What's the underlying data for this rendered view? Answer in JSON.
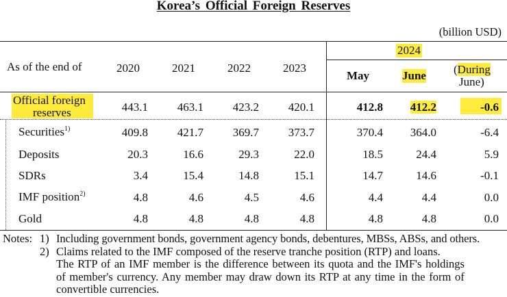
{
  "title": "Korea’s Official Foreign Reserves",
  "unit": "(billion USD)",
  "header": {
    "row_label": "As of the end of",
    "years": [
      "2020",
      "2021",
      "2022",
      "2023"
    ],
    "group_year": "2024",
    "may": "May",
    "june": "June",
    "change_open": "(",
    "change_hl": "During",
    "change_line2": "June)"
  },
  "rows": {
    "total": {
      "label_line1": "Official foreign",
      "label_line2": "reserves",
      "values": [
        "443.1",
        "463.1",
        "423.2",
        "420.1",
        "412.8",
        "412.2",
        "-0.6"
      ]
    },
    "securities": {
      "label": "Securities",
      "sup": "1)",
      "values": [
        "409.8",
        "421.7",
        "369.7",
        "373.7",
        "370.4",
        "364.0",
        "-6.4"
      ]
    },
    "deposits": {
      "label": "Deposits",
      "values": [
        "20.3",
        "16.6",
        "29.3",
        "22.0",
        "18.5",
        "24.4",
        "5.9"
      ]
    },
    "sdrs": {
      "label": "SDRs",
      "values": [
        "3.4",
        "15.4",
        "14.8",
        "15.1",
        "14.7",
        "14.6",
        "-0.1"
      ]
    },
    "imf": {
      "label": "IMF position",
      "sup": "2)",
      "values": [
        "4.8",
        "4.6",
        "4.5",
        "4.6",
        "4.4",
        "4.4",
        "0.0"
      ]
    },
    "gold": {
      "label": "Gold",
      "values": [
        "4.8",
        "4.8",
        "4.8",
        "4.8",
        "4.8",
        "4.8",
        "0.0"
      ]
    }
  },
  "notes": {
    "prefix": "Notes:",
    "n1_num": "1)",
    "n1_text": "Including government bonds, government agency bonds, debentures, MBSs, ABSs, and others.",
    "n2_num": "2)",
    "n2_line1": "Claims related to the IMF composed of the reserve tranche position (RTP) and loans.",
    "n2_line2": "The RTP of an IMF member is the difference between its quota and the IMF's holdings",
    "n2_line3": "of member's currency. Any member may draw down its RTP at any time in the form of",
    "n2_line4": "convertible currencies."
  },
  "colors": {
    "highlight": "#ffeb3b"
  }
}
